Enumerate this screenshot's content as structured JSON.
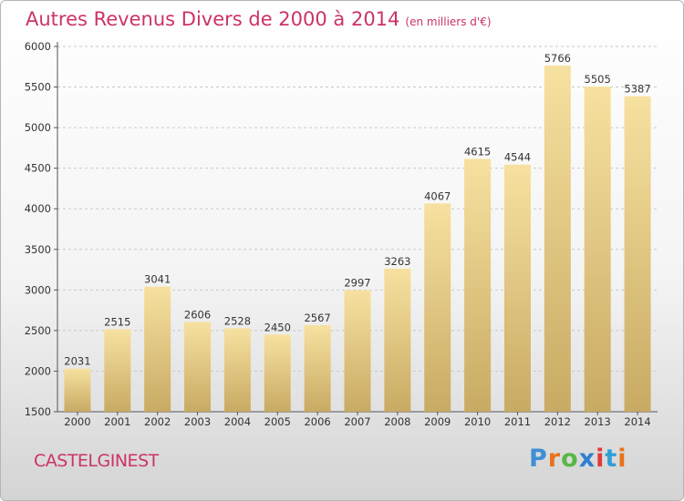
{
  "title": "Autres Revenus Divers de 2000 à 2014",
  "subtitle": "(en milliers d'€)",
  "location": "CASTELGINEST",
  "logo": {
    "text": "Proxiti",
    "letter_colors": [
      "#3e8ed6",
      "#e8731c",
      "#57b846",
      "#2d7fd0",
      "#e03a3a",
      "#2f9fd8",
      "#e8731c"
    ]
  },
  "colors": {
    "title": "#cc3366",
    "bar_top": "#f7e1a0",
    "bar_bottom": "#c8aa63",
    "grid": "#c9c9c9"
  },
  "chart_data": {
    "type": "bar",
    "categories": [
      "2000",
      "2001",
      "2002",
      "2003",
      "2004",
      "2005",
      "2006",
      "2007",
      "2008",
      "2009",
      "2010",
      "2011",
      "2012",
      "2013",
      "2014"
    ],
    "values": [
      2031,
      2515,
      3041,
      2606,
      2528,
      2450,
      2567,
      2997,
      3263,
      4067,
      4615,
      4544,
      5766,
      5505,
      5387
    ],
    "yticks": [
      1500,
      2000,
      2500,
      3000,
      3500,
      4000,
      4500,
      5000,
      5500,
      6000
    ],
    "ylim": [
      1500,
      6000
    ],
    "grid": true,
    "legend": "none",
    "xlabel": "",
    "ylabel": ""
  }
}
